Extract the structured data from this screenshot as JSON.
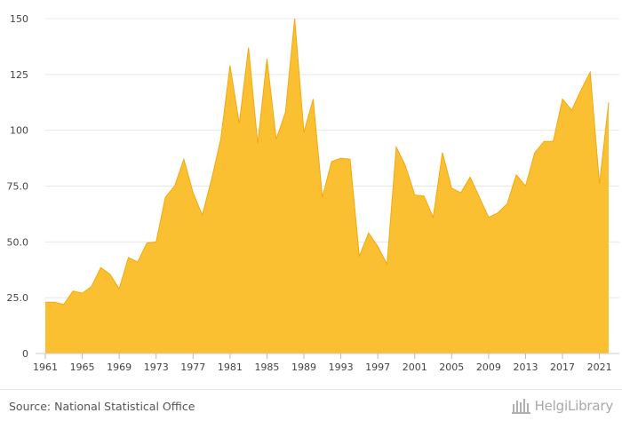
{
  "chart_data": {
    "type": "area",
    "color": "#fbbb21",
    "x": [
      1961,
      1962,
      1963,
      1964,
      1965,
      1966,
      1967,
      1968,
      1969,
      1970,
      1971,
      1972,
      1973,
      1974,
      1975,
      1976,
      1977,
      1978,
      1979,
      1980,
      1981,
      1982,
      1983,
      1984,
      1985,
      1986,
      1987,
      1988,
      1989,
      1990,
      1991,
      1992,
      1993,
      1994,
      1995,
      1996,
      1997,
      1998,
      1999,
      2000,
      2001,
      2002,
      2003,
      2004,
      2005,
      2006,
      2007,
      2008,
      2009,
      2010,
      2011,
      2012,
      2013,
      2014,
      2015,
      2016,
      2017,
      2018,
      2019,
      2020,
      2021,
      2022
    ],
    "y": [
      23,
      23,
      22,
      28,
      27,
      30,
      38.5,
      35.5,
      29,
      43,
      41,
      49.5,
      50,
      70,
      75,
      87,
      72,
      62,
      78,
      96,
      129,
      103,
      137,
      94,
      132,
      96,
      108,
      150,
      99,
      114,
      70,
      86,
      87.5,
      87,
      43.5,
      54,
      48,
      40,
      92.5,
      84,
      71,
      70.5,
      61,
      90,
      74,
      72,
      79,
      70,
      61,
      63,
      67,
      80,
      75,
      90,
      95,
      95,
      114,
      109,
      118,
      126,
      76,
      112.5
    ],
    "xticks": [
      "1961",
      "1965",
      "1969",
      "1973",
      "1977",
      "1981",
      "1985",
      "1989",
      "1993",
      "1997",
      "2001",
      "2005",
      "2009",
      "2013",
      "2017",
      "2021"
    ],
    "yticks": [
      "0",
      "25.0",
      "50.0",
      "75.0",
      "100",
      "125",
      "150"
    ],
    "ylim": [
      0,
      150
    ],
    "xlim": [
      1961,
      2022
    ],
    "grid": true
  },
  "footer": {
    "source": "Source: National Statistical Office",
    "brand": "HelgiLibrary"
  }
}
